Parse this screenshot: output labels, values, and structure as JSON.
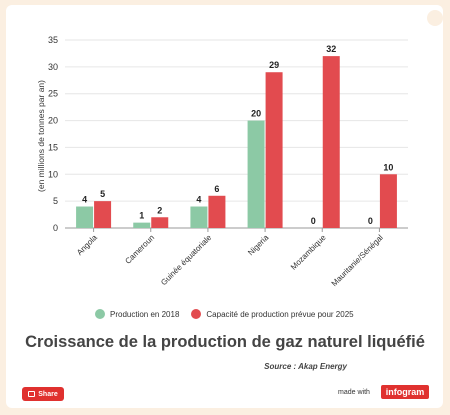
{
  "chart_data": {
    "type": "bar",
    "title": "Croissance de la production de gaz naturel liquéfié",
    "ylabel": "(en millions de tonnes par an)",
    "ylim": [
      0,
      35
    ],
    "yticks": [
      0,
      5,
      10,
      15,
      20,
      25,
      30,
      35
    ],
    "grid": true,
    "legend_position": "bottom",
    "categories": [
      "Angola",
      "Cameroun",
      "Guinée équatoriale",
      "Nigeria",
      "Mozambique",
      "Mauritanie/Sénégal"
    ],
    "series": [
      {
        "name": "Production en 2018",
        "color": "#8cc9a5",
        "values": [
          4,
          1,
          4,
          20,
          0,
          0
        ]
      },
      {
        "name": "Capacité de production prévue pour 2025",
        "color": "#e24b4f",
        "values": [
          5,
          2,
          6,
          29,
          32,
          10
        ]
      }
    ]
  },
  "source": "Source : Akap Energy",
  "footer": {
    "share_label": "Share",
    "made_with": "made with",
    "brand": "infogram"
  }
}
